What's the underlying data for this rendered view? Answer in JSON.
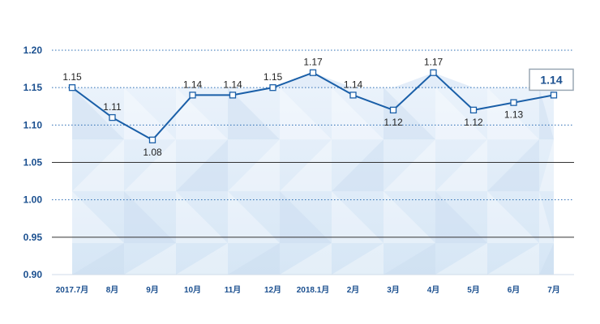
{
  "chart_data": {
    "type": "line",
    "title": "",
    "xlabel": "",
    "ylabel": "",
    "categories": [
      "2017.7月",
      "8月",
      "9月",
      "10月",
      "11月",
      "12月",
      "2018.1月",
      "2月",
      "3月",
      "4月",
      "5月",
      "6月",
      "7月"
    ],
    "series": [
      {
        "values": [
          1.15,
          1.11,
          1.08,
          1.14,
          1.14,
          1.15,
          1.17,
          1.14,
          1.12,
          1.17,
          1.12,
          1.13,
          1.14
        ]
      }
    ],
    "data_labels": [
      "1.15",
      "1.11",
      "1.08",
      "1.14",
      "1.14",
      "1.15",
      "1.17",
      "1.14",
      "1.12",
      "1.17",
      "1.12",
      "1.13",
      "1.14"
    ],
    "y_ticks": [
      "1.20",
      "1.15",
      "1.10",
      "1.05",
      "1.00",
      "0.95",
      "0.90"
    ],
    "ylim": [
      0.9,
      1.2
    ],
    "legend": "none",
    "highlighted_last_value": "1.14",
    "colors": {
      "line": "#1a5fa8",
      "axis_text": "#1a4f8f",
      "dotted_grid": "#2a6cb3",
      "solid_grid": "#333333",
      "band": "#dbe8f6"
    }
  }
}
